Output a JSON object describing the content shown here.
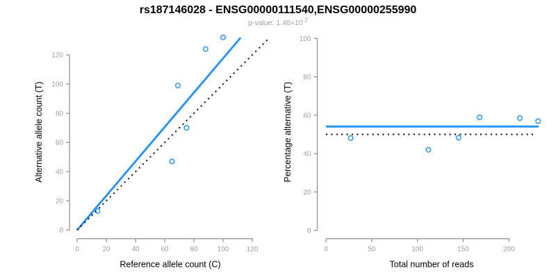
{
  "header": {
    "title": "rs187146028 - ENSG00000111540,ENSG00000255990",
    "pvalue_text": "p-value: 1.46×10",
    "pvalue_exponent": "-2"
  },
  "colors": {
    "accent_blue": "#1E90FF",
    "line_black": "#000000",
    "axis_gray": "#8C8C8C",
    "tick_label_gray": "#9E9E9E",
    "subtitle_gray": "#A0A0A0",
    "title_black": "#000000",
    "background": "#FFFFFF"
  },
  "chart_data": [
    {
      "type": "scatter",
      "panel": "left",
      "xlabel": "Reference allele count (C)",
      "ylabel": "Alternative allele count (T)",
      "xticks": [
        0,
        20,
        40,
        60,
        80,
        100,
        120
      ],
      "yticks": [
        0,
        20,
        40,
        60,
        80,
        100,
        120
      ],
      "xlim": [
        0,
        132
      ],
      "ylim": [
        0,
        135
      ],
      "grid": false,
      "legend": "none",
      "points": [
        [
          14,
          13
        ],
        [
          65,
          47
        ],
        [
          75,
          70
        ],
        [
          69,
          99
        ],
        [
          88,
          124
        ],
        [
          100,
          132
        ]
      ],
      "lines": [
        {
          "label": "fitted-ratio-line",
          "style": "solid",
          "color": "accent_blue",
          "x1": 0,
          "y1": 0,
          "x2": 112,
          "y2": 131.8
        },
        {
          "label": "identity-line",
          "style": "dotted",
          "color": "line_black",
          "x1": 0,
          "y1": 0,
          "x2": 131.5,
          "y2": 131.5
        }
      ]
    },
    {
      "type": "scatter",
      "panel": "right",
      "xlabel": "Total number of reads",
      "ylabel": "Percentage alternative (T)",
      "xticks": [
        0,
        50,
        100,
        150,
        200
      ],
      "yticks": [
        0,
        20,
        40,
        60,
        80,
        100
      ],
      "xlim": [
        0,
        240
      ],
      "ylim": [
        0,
        100
      ],
      "grid": false,
      "legend": "none",
      "points": [
        [
          27,
          48.1
        ],
        [
          112,
          42
        ],
        [
          145,
          48.3
        ],
        [
          168,
          58.9
        ],
        [
          212,
          58.5
        ],
        [
          232,
          56.9
        ]
      ],
      "lines": [
        {
          "label": "mean-percentage-line",
          "style": "solid",
          "color": "accent_blue",
          "x1": 0,
          "y1": 54.1,
          "x2": 232.6,
          "y2": 54.1
        },
        {
          "label": "expected-50-line",
          "style": "dotted",
          "color": "line_black",
          "x1": 0,
          "y1": 50,
          "x2": 227,
          "y2": 50
        }
      ]
    }
  ]
}
